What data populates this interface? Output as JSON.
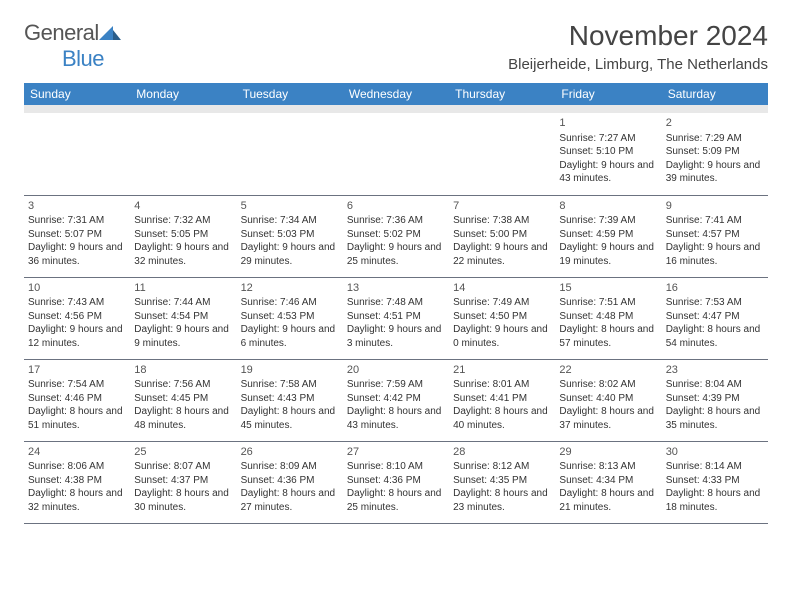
{
  "logo": {
    "primary": "General",
    "secondary": "Blue"
  },
  "title": "November 2024",
  "location": "Bleijerheide, Limburg, The Netherlands",
  "colors": {
    "header_bg": "#3b82c4",
    "header_text": "#ffffff",
    "spacer_bg": "#e8e8e8",
    "border": "#6b7280",
    "text": "#333333",
    "logo_gray": "#555555",
    "logo_blue": "#3b82c4"
  },
  "day_headers": [
    "Sunday",
    "Monday",
    "Tuesday",
    "Wednesday",
    "Thursday",
    "Friday",
    "Saturday"
  ],
  "weeks": [
    [
      {
        "n": "",
        "txt": ""
      },
      {
        "n": "",
        "txt": ""
      },
      {
        "n": "",
        "txt": ""
      },
      {
        "n": "",
        "txt": ""
      },
      {
        "n": "",
        "txt": ""
      },
      {
        "n": "1",
        "txt": "Sunrise: 7:27 AM\nSunset: 5:10 PM\nDaylight: 9 hours and 43 minutes."
      },
      {
        "n": "2",
        "txt": "Sunrise: 7:29 AM\nSunset: 5:09 PM\nDaylight: 9 hours and 39 minutes."
      }
    ],
    [
      {
        "n": "3",
        "txt": "Sunrise: 7:31 AM\nSunset: 5:07 PM\nDaylight: 9 hours and 36 minutes."
      },
      {
        "n": "4",
        "txt": "Sunrise: 7:32 AM\nSunset: 5:05 PM\nDaylight: 9 hours and 32 minutes."
      },
      {
        "n": "5",
        "txt": "Sunrise: 7:34 AM\nSunset: 5:03 PM\nDaylight: 9 hours and 29 minutes."
      },
      {
        "n": "6",
        "txt": "Sunrise: 7:36 AM\nSunset: 5:02 PM\nDaylight: 9 hours and 25 minutes."
      },
      {
        "n": "7",
        "txt": "Sunrise: 7:38 AM\nSunset: 5:00 PM\nDaylight: 9 hours and 22 minutes."
      },
      {
        "n": "8",
        "txt": "Sunrise: 7:39 AM\nSunset: 4:59 PM\nDaylight: 9 hours and 19 minutes."
      },
      {
        "n": "9",
        "txt": "Sunrise: 7:41 AM\nSunset: 4:57 PM\nDaylight: 9 hours and 16 minutes."
      }
    ],
    [
      {
        "n": "10",
        "txt": "Sunrise: 7:43 AM\nSunset: 4:56 PM\nDaylight: 9 hours and 12 minutes."
      },
      {
        "n": "11",
        "txt": "Sunrise: 7:44 AM\nSunset: 4:54 PM\nDaylight: 9 hours and 9 minutes."
      },
      {
        "n": "12",
        "txt": "Sunrise: 7:46 AM\nSunset: 4:53 PM\nDaylight: 9 hours and 6 minutes."
      },
      {
        "n": "13",
        "txt": "Sunrise: 7:48 AM\nSunset: 4:51 PM\nDaylight: 9 hours and 3 minutes."
      },
      {
        "n": "14",
        "txt": "Sunrise: 7:49 AM\nSunset: 4:50 PM\nDaylight: 9 hours and 0 minutes."
      },
      {
        "n": "15",
        "txt": "Sunrise: 7:51 AM\nSunset: 4:48 PM\nDaylight: 8 hours and 57 minutes."
      },
      {
        "n": "16",
        "txt": "Sunrise: 7:53 AM\nSunset: 4:47 PM\nDaylight: 8 hours and 54 minutes."
      }
    ],
    [
      {
        "n": "17",
        "txt": "Sunrise: 7:54 AM\nSunset: 4:46 PM\nDaylight: 8 hours and 51 minutes."
      },
      {
        "n": "18",
        "txt": "Sunrise: 7:56 AM\nSunset: 4:45 PM\nDaylight: 8 hours and 48 minutes."
      },
      {
        "n": "19",
        "txt": "Sunrise: 7:58 AM\nSunset: 4:43 PM\nDaylight: 8 hours and 45 minutes."
      },
      {
        "n": "20",
        "txt": "Sunrise: 7:59 AM\nSunset: 4:42 PM\nDaylight: 8 hours and 43 minutes."
      },
      {
        "n": "21",
        "txt": "Sunrise: 8:01 AM\nSunset: 4:41 PM\nDaylight: 8 hours and 40 minutes."
      },
      {
        "n": "22",
        "txt": "Sunrise: 8:02 AM\nSunset: 4:40 PM\nDaylight: 8 hours and 37 minutes."
      },
      {
        "n": "23",
        "txt": "Sunrise: 8:04 AM\nSunset: 4:39 PM\nDaylight: 8 hours and 35 minutes."
      }
    ],
    [
      {
        "n": "24",
        "txt": "Sunrise: 8:06 AM\nSunset: 4:38 PM\nDaylight: 8 hours and 32 minutes."
      },
      {
        "n": "25",
        "txt": "Sunrise: 8:07 AM\nSunset: 4:37 PM\nDaylight: 8 hours and 30 minutes."
      },
      {
        "n": "26",
        "txt": "Sunrise: 8:09 AM\nSunset: 4:36 PM\nDaylight: 8 hours and 27 minutes."
      },
      {
        "n": "27",
        "txt": "Sunrise: 8:10 AM\nSunset: 4:36 PM\nDaylight: 8 hours and 25 minutes."
      },
      {
        "n": "28",
        "txt": "Sunrise: 8:12 AM\nSunset: 4:35 PM\nDaylight: 8 hours and 23 minutes."
      },
      {
        "n": "29",
        "txt": "Sunrise: 8:13 AM\nSunset: 4:34 PM\nDaylight: 8 hours and 21 minutes."
      },
      {
        "n": "30",
        "txt": "Sunrise: 8:14 AM\nSunset: 4:33 PM\nDaylight: 8 hours and 18 minutes."
      }
    ]
  ]
}
